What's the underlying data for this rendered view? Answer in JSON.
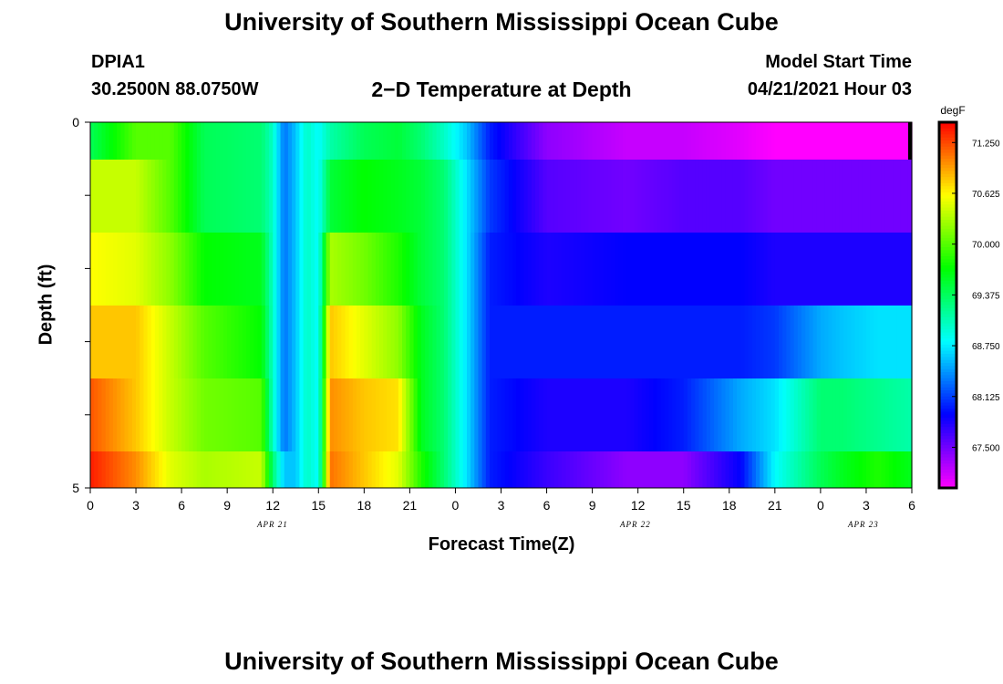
{
  "header": {
    "title_top": "University of Southern Mississippi Ocean Cube",
    "title_bottom": "University of Southern Mississippi Ocean Cube",
    "station_id": "DPIA1",
    "station_coords": "30.2500N  88.0750W",
    "plot_title": "2−D Temperature at Depth",
    "model_label": "Model Start Time",
    "model_time": "04/21/2021 Hour 03"
  },
  "chart_data": {
    "type": "heatmap",
    "title": "2−D Temperature at Depth",
    "xlabel": "Forecast Time(Z)",
    "ylabel": "Depth (ft)",
    "x_tick_labels": [
      "0",
      "3",
      "6",
      "9",
      "12",
      "15",
      "18",
      "21",
      "0",
      "3",
      "6",
      "9",
      "12",
      "15",
      "18",
      "21",
      "0",
      "3",
      "6"
    ],
    "date_labels": [
      "APR  21",
      "APR  22",
      "APR  23"
    ],
    "y_tick_labels": [
      "0",
      "5"
    ],
    "y_range": [
      0,
      5
    ],
    "depth_levels": [
      0,
      1,
      2,
      3,
      4,
      5
    ],
    "colorbar": {
      "units": "degF",
      "ticks": [
        "71.250",
        "70.625",
        "70.000",
        "69.375",
        "68.750",
        "68.125",
        "67.500"
      ],
      "range": [
        67.0,
        71.5
      ]
    },
    "colors": {
      "scale_low": "#ff00ff",
      "scale_high": "#ff0000"
    },
    "keyframes_hours": [
      0,
      4,
      7,
      10,
      15,
      16,
      17,
      18,
      19,
      20,
      21,
      24,
      27,
      29,
      31,
      33,
      35,
      40,
      47,
      52,
      57,
      60,
      64,
      66,
      69,
      72
    ],
    "rows": [
      [
        69.4,
        70.0,
        70.0,
        69.4,
        69.3,
        69.0,
        68.3,
        68.6,
        69.0,
        68.8,
        69.1,
        69.4,
        69.5,
        69.3,
        69.0,
        68.6,
        68.0,
        67.4,
        67.2,
        67.2,
        67.1,
        67.0,
        67.0,
        67.0,
        67.0,
        67.0
      ],
      [
        70.4,
        70.4,
        70.0,
        69.4,
        69.3,
        69.0,
        68.3,
        68.6,
        69.0,
        68.8,
        69.5,
        69.7,
        69.6,
        69.5,
        69.3,
        68.7,
        68.1,
        67.6,
        67.5,
        67.6,
        67.6,
        67.5,
        67.5,
        67.5,
        67.5,
        67.5
      ],
      [
        70.6,
        70.5,
        70.2,
        69.7,
        69.6,
        69.0,
        68.3,
        68.6,
        69.0,
        68.8,
        70.3,
        70.1,
        69.8,
        69.5,
        69.3,
        68.7,
        68.0,
        67.8,
        67.9,
        67.9,
        67.9,
        67.8,
        67.8,
        67.8,
        67.8,
        67.8
      ],
      [
        70.8,
        70.8,
        70.4,
        70.0,
        69.7,
        69.0,
        68.3,
        68.6,
        69.0,
        68.8,
        70.8,
        70.5,
        70.2,
        69.6,
        69.3,
        68.7,
        68.0,
        68.0,
        68.0,
        68.0,
        68.0,
        68.1,
        68.5,
        68.6,
        68.7,
        68.7
      ],
      [
        71.2,
        70.8,
        70.4,
        70.1,
        70.0,
        69.0,
        68.3,
        68.6,
        69.0,
        68.8,
        71.0,
        70.8,
        70.7,
        69.6,
        69.3,
        68.7,
        68.0,
        67.8,
        67.8,
        68.0,
        68.5,
        68.7,
        69.3,
        69.3,
        69.2,
        69.1
      ],
      [
        71.4,
        71.0,
        70.5,
        70.3,
        70.4,
        69.3,
        68.6,
        68.6,
        69.0,
        68.8,
        71.1,
        70.8,
        70.5,
        69.8,
        69.3,
        68.7,
        68.0,
        67.7,
        67.4,
        67.4,
        67.9,
        68.8,
        69.4,
        69.6,
        69.8,
        69.6
      ]
    ]
  }
}
